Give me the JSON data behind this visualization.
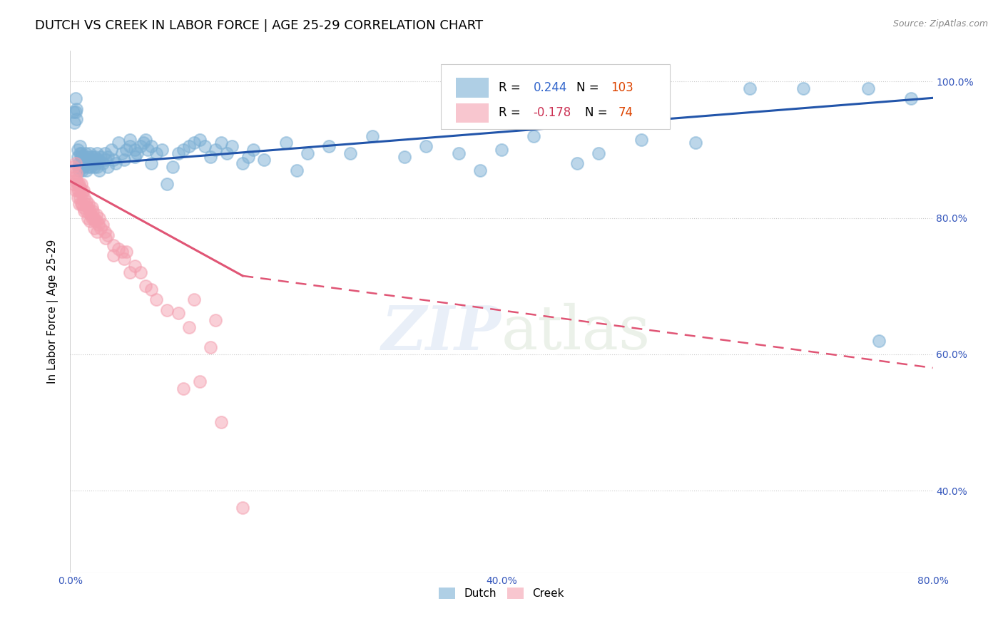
{
  "title": "DUTCH VS CREEK IN LABOR FORCE | AGE 25-29 CORRELATION CHART",
  "source": "Source: ZipAtlas.com",
  "ylabel_text": "In Labor Force | Age 25-29",
  "xlim": [
    0.0,
    0.8
  ],
  "ylim": [
    0.28,
    1.045
  ],
  "dutch_color": "#7bafd4",
  "creek_color": "#f4a0b0",
  "dutch_R": 0.244,
  "dutch_N": 103,
  "creek_R": -0.178,
  "creek_N": 74,
  "trend_dutch_color": "#2255aa",
  "trend_creek_color": "#e05575",
  "watermark": "ZIPatlas",
  "dutch_scatter": [
    [
      0.003,
      0.955
    ],
    [
      0.004,
      0.94
    ],
    [
      0.005,
      0.955
    ],
    [
      0.005,
      0.975
    ],
    [
      0.006,
      0.96
    ],
    [
      0.006,
      0.945
    ],
    [
      0.007,
      0.89
    ],
    [
      0.007,
      0.9
    ],
    [
      0.008,
      0.87
    ],
    [
      0.008,
      0.875
    ],
    [
      0.008,
      0.88
    ],
    [
      0.009,
      0.895
    ],
    [
      0.009,
      0.905
    ],
    [
      0.01,
      0.88
    ],
    [
      0.01,
      0.89
    ],
    [
      0.01,
      0.895
    ],
    [
      0.011,
      0.87
    ],
    [
      0.011,
      0.88
    ],
    [
      0.012,
      0.875
    ],
    [
      0.012,
      0.885
    ],
    [
      0.013,
      0.88
    ],
    [
      0.013,
      0.89
    ],
    [
      0.014,
      0.885
    ],
    [
      0.014,
      0.895
    ],
    [
      0.015,
      0.87
    ],
    [
      0.015,
      0.88
    ],
    [
      0.016,
      0.875
    ],
    [
      0.016,
      0.885
    ],
    [
      0.017,
      0.89
    ],
    [
      0.018,
      0.88
    ],
    [
      0.018,
      0.895
    ],
    [
      0.019,
      0.875
    ],
    [
      0.02,
      0.885
    ],
    [
      0.02,
      0.89
    ],
    [
      0.021,
      0.88
    ],
    [
      0.022,
      0.875
    ],
    [
      0.022,
      0.885
    ],
    [
      0.023,
      0.89
    ],
    [
      0.024,
      0.88
    ],
    [
      0.025,
      0.895
    ],
    [
      0.025,
      0.875
    ],
    [
      0.026,
      0.885
    ],
    [
      0.027,
      0.87
    ],
    [
      0.028,
      0.89
    ],
    [
      0.03,
      0.88
    ],
    [
      0.032,
      0.895
    ],
    [
      0.033,
      0.885
    ],
    [
      0.035,
      0.875
    ],
    [
      0.035,
      0.89
    ],
    [
      0.038,
      0.9
    ],
    [
      0.04,
      0.885
    ],
    [
      0.042,
      0.88
    ],
    [
      0.045,
      0.91
    ],
    [
      0.048,
      0.895
    ],
    [
      0.05,
      0.885
    ],
    [
      0.052,
      0.9
    ],
    [
      0.055,
      0.905
    ],
    [
      0.055,
      0.915
    ],
    [
      0.06,
      0.89
    ],
    [
      0.06,
      0.9
    ],
    [
      0.062,
      0.895
    ],
    [
      0.065,
      0.905
    ],
    [
      0.068,
      0.91
    ],
    [
      0.07,
      0.915
    ],
    [
      0.072,
      0.9
    ],
    [
      0.075,
      0.88
    ],
    [
      0.075,
      0.905
    ],
    [
      0.08,
      0.895
    ],
    [
      0.085,
      0.9
    ],
    [
      0.09,
      0.85
    ],
    [
      0.095,
      0.875
    ],
    [
      0.1,
      0.895
    ],
    [
      0.105,
      0.9
    ],
    [
      0.11,
      0.905
    ],
    [
      0.115,
      0.91
    ],
    [
      0.12,
      0.915
    ],
    [
      0.125,
      0.905
    ],
    [
      0.13,
      0.89
    ],
    [
      0.135,
      0.9
    ],
    [
      0.14,
      0.91
    ],
    [
      0.145,
      0.895
    ],
    [
      0.15,
      0.905
    ],
    [
      0.16,
      0.88
    ],
    [
      0.165,
      0.89
    ],
    [
      0.17,
      0.9
    ],
    [
      0.18,
      0.885
    ],
    [
      0.2,
      0.91
    ],
    [
      0.21,
      0.87
    ],
    [
      0.22,
      0.895
    ],
    [
      0.24,
      0.905
    ],
    [
      0.26,
      0.895
    ],
    [
      0.28,
      0.92
    ],
    [
      0.31,
      0.89
    ],
    [
      0.33,
      0.905
    ],
    [
      0.36,
      0.895
    ],
    [
      0.38,
      0.87
    ],
    [
      0.4,
      0.9
    ],
    [
      0.43,
      0.92
    ],
    [
      0.47,
      0.88
    ],
    [
      0.49,
      0.895
    ],
    [
      0.53,
      0.915
    ],
    [
      0.58,
      0.91
    ],
    [
      0.63,
      0.99
    ],
    [
      0.68,
      0.99
    ],
    [
      0.74,
      0.99
    ],
    [
      0.75,
      0.62
    ],
    [
      0.78,
      0.975
    ]
  ],
  "creek_scatter": [
    [
      0.003,
      0.875
    ],
    [
      0.003,
      0.85
    ],
    [
      0.004,
      0.87
    ],
    [
      0.004,
      0.855
    ],
    [
      0.005,
      0.86
    ],
    [
      0.005,
      0.88
    ],
    [
      0.005,
      0.84
    ],
    [
      0.006,
      0.855
    ],
    [
      0.006,
      0.865
    ],
    [
      0.007,
      0.85
    ],
    [
      0.007,
      0.84
    ],
    [
      0.007,
      0.83
    ],
    [
      0.008,
      0.85
    ],
    [
      0.008,
      0.84
    ],
    [
      0.008,
      0.82
    ],
    [
      0.009,
      0.845
    ],
    [
      0.009,
      0.83
    ],
    [
      0.01,
      0.85
    ],
    [
      0.01,
      0.84
    ],
    [
      0.01,
      0.82
    ],
    [
      0.011,
      0.835
    ],
    [
      0.011,
      0.82
    ],
    [
      0.012,
      0.84
    ],
    [
      0.012,
      0.815
    ],
    [
      0.013,
      0.83
    ],
    [
      0.013,
      0.81
    ],
    [
      0.014,
      0.82
    ],
    [
      0.015,
      0.825
    ],
    [
      0.015,
      0.81
    ],
    [
      0.016,
      0.815
    ],
    [
      0.016,
      0.8
    ],
    [
      0.017,
      0.82
    ],
    [
      0.018,
      0.81
    ],
    [
      0.018,
      0.795
    ],
    [
      0.019,
      0.805
    ],
    [
      0.02,
      0.815
    ],
    [
      0.02,
      0.8
    ],
    [
      0.021,
      0.81
    ],
    [
      0.022,
      0.8
    ],
    [
      0.022,
      0.785
    ],
    [
      0.023,
      0.795
    ],
    [
      0.024,
      0.805
    ],
    [
      0.025,
      0.795
    ],
    [
      0.025,
      0.78
    ],
    [
      0.026,
      0.79
    ],
    [
      0.027,
      0.8
    ],
    [
      0.028,
      0.785
    ],
    [
      0.03,
      0.79
    ],
    [
      0.032,
      0.78
    ],
    [
      0.033,
      0.77
    ],
    [
      0.035,
      0.775
    ],
    [
      0.04,
      0.76
    ],
    [
      0.04,
      0.745
    ],
    [
      0.045,
      0.755
    ],
    [
      0.048,
      0.75
    ],
    [
      0.05,
      0.74
    ],
    [
      0.052,
      0.75
    ],
    [
      0.055,
      0.72
    ],
    [
      0.06,
      0.73
    ],
    [
      0.065,
      0.72
    ],
    [
      0.07,
      0.7
    ],
    [
      0.075,
      0.695
    ],
    [
      0.08,
      0.68
    ],
    [
      0.09,
      0.665
    ],
    [
      0.1,
      0.66
    ],
    [
      0.105,
      0.55
    ],
    [
      0.11,
      0.64
    ],
    [
      0.115,
      0.68
    ],
    [
      0.12,
      0.56
    ],
    [
      0.13,
      0.61
    ],
    [
      0.135,
      0.65
    ],
    [
      0.14,
      0.5
    ],
    [
      0.16,
      0.375
    ]
  ]
}
